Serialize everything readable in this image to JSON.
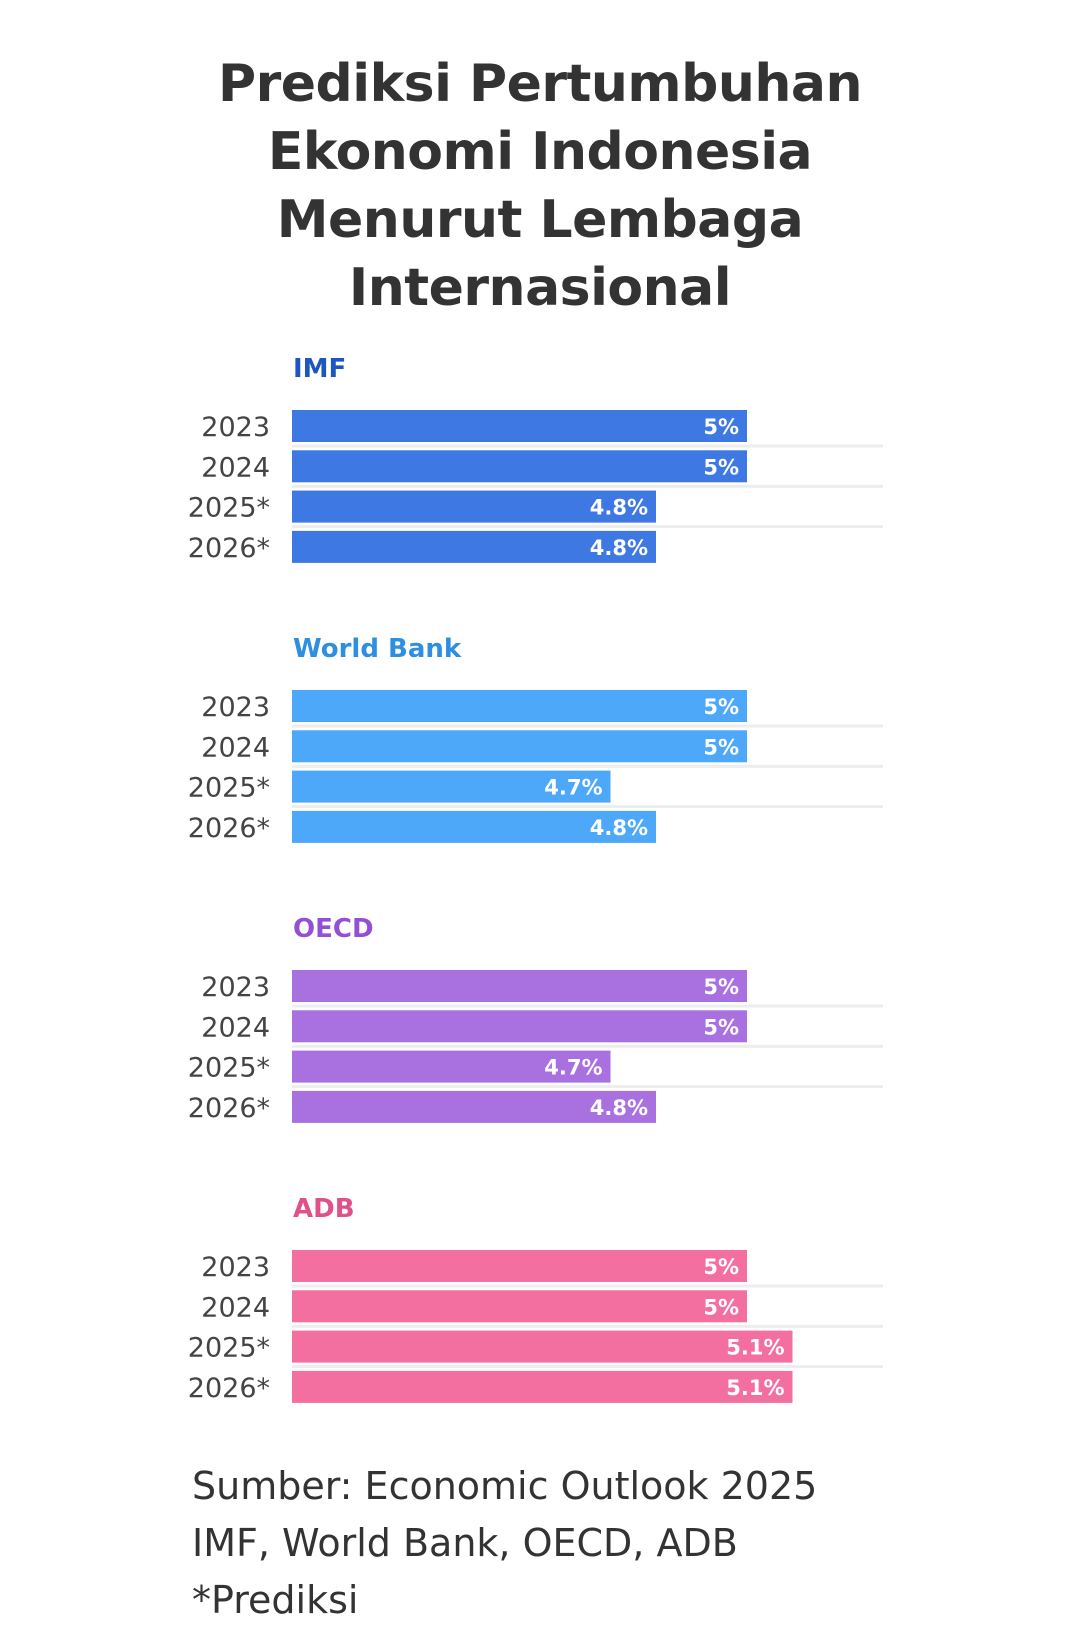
{
  "title": {
    "lines": [
      "Prediksi Pertumbuhan",
      "Ekonomi Indonesia",
      "Menurut Lembaga",
      "Internasional"
    ]
  },
  "footer": {
    "lines": [
      "Sumber: Economic Outlook 2025",
      "IMF, World Bank, OECD, ADB",
      "*Prediksi"
    ]
  },
  "chart_data": {
    "type": "bar",
    "orientation": "horizontal",
    "title": "Prediksi Pertumbuhan Ekonomi Indonesia Menurut Lembaga Internasional",
    "xlabel": "",
    "ylabel": "",
    "unit": "%",
    "xlim": [
      4.0,
      5.3
    ],
    "grid": false,
    "legend": "none",
    "categories": [
      "2023",
      "2024",
      "2025*",
      "2026*"
    ],
    "series": [
      {
        "name": "IMF",
        "bar_color": "#3D78E3",
        "label_color": "#1E56C0",
        "values": [
          5.0,
          5.0,
          4.8,
          4.8
        ],
        "value_labels": [
          "5%",
          "5%",
          "4.8%",
          "4.8%"
        ]
      },
      {
        "name": "World Bank",
        "bar_color": "#4DA8FA",
        "label_color": "#2E8FE0",
        "values": [
          5.0,
          5.0,
          4.7,
          4.8
        ],
        "value_labels": [
          "5%",
          "5%",
          "4.7%",
          "4.8%"
        ]
      },
      {
        "name": "OECD",
        "bar_color": "#A970E0",
        "label_color": "#9450D4",
        "values": [
          5.0,
          5.0,
          4.7,
          4.8
        ],
        "value_labels": [
          "5%",
          "5%",
          "4.7%",
          "4.8%"
        ]
      },
      {
        "name": "ADB",
        "bar_color": "#F26FA0",
        "label_color": "#E0508A",
        "values": [
          5.0,
          5.0,
          5.1,
          5.1
        ],
        "value_labels": [
          "5%",
          "5%",
          "5.1%",
          "5.1%"
        ]
      }
    ],
    "annotations": [
      "* = Prediksi"
    ]
  }
}
